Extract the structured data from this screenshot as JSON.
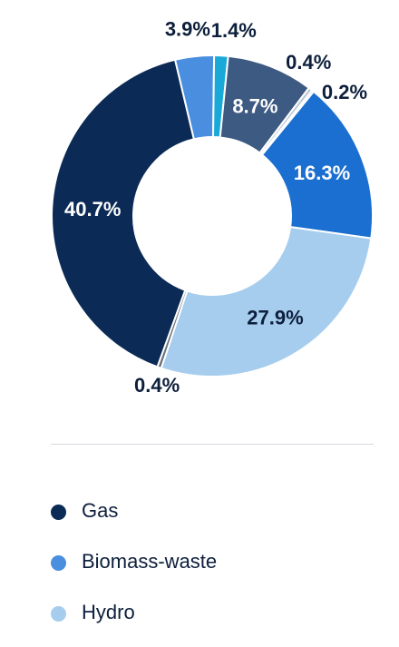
{
  "chart_data": {
    "type": "pie",
    "donut": true,
    "slices": [
      {
        "name": "Gas",
        "value": 40.7,
        "label": "40.7%",
        "color": "#0b2a55",
        "label_color": "#ffffff"
      },
      {
        "name": "Biomass-waste",
        "value": 3.9,
        "label": "3.9%",
        "color": "#4a8fdf",
        "label_color": "#0d1f3c"
      },
      {
        "name": "",
        "value": 1.4,
        "label": "1.4%",
        "color": "#19a9d8",
        "label_color": "#0d1f3c"
      },
      {
        "name": "",
        "value": 8.7,
        "label": "8.7%",
        "color": "#3d5a82",
        "label_color": "#ffffff"
      },
      {
        "name": "",
        "value": 0.4,
        "label": "0.4%",
        "color": "#b9c7d6",
        "label_color": "#0d1f3c"
      },
      {
        "name": "",
        "value": 0.2,
        "label": "0.2%",
        "color": "#3a6fc3",
        "label_color": "#0d1f3c"
      },
      {
        "name": "",
        "value": 16.3,
        "label": "16.3%",
        "color": "#1a6fd0",
        "label_color": "#ffffff"
      },
      {
        "name": "Hydro",
        "value": 27.9,
        "label": "27.9%",
        "color": "#a6cdee",
        "label_color": "#0d1f3c"
      },
      {
        "name": "",
        "value": 0.4,
        "label": "0.4%",
        "color": "#666f79",
        "label_color": "#0d1f3c"
      }
    ]
  },
  "legend": [
    {
      "label": "Gas",
      "color": "#0b2a55"
    },
    {
      "label": "Biomass-waste",
      "color": "#4a8fdf"
    },
    {
      "label": "Hydro",
      "color": "#a6cdee"
    }
  ]
}
